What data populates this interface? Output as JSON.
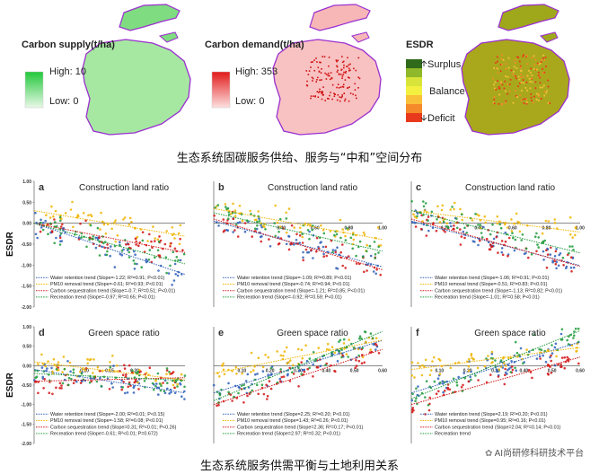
{
  "maps": {
    "supply": {
      "title": "Carbon supply(t/ha)",
      "high_label": "High:",
      "high_value": "10",
      "low_label": "Low:",
      "low_value": "0",
      "high_color": "#22c83a",
      "low_color": "#e8f8e8"
    },
    "demand": {
      "title": "Carbon demand(t/ha)",
      "high_label": "High:",
      "high_value": "353",
      "low_label": "Low:",
      "low_value": "0",
      "high_color": "#e21a1a",
      "low_color": "#fde0e0"
    },
    "esdr": {
      "title": "ESDR",
      "surplus": "Surplus",
      "balance": "Balance",
      "deficit": "Deficit",
      "colors": [
        "#2f6b1b",
        "#8fb82a",
        "#d8e43a",
        "#f4f040",
        "#f9c03a",
        "#f48a2a",
        "#e8391c"
      ]
    }
  },
  "captions": {
    "top": "生态系统固碳服务供给、服务与“中和”空间分布",
    "bottom": "生态系统服务供需平衡与土地利用关系"
  },
  "ylabel_text": "ESDR",
  "watermark": "AI尚研修科研技术平台",
  "series_colors": {
    "water": "#2e5fb8",
    "pm10": "#f0b400",
    "carbon": "#d21414",
    "recreation": "#1f9a3a"
  },
  "chart_data": [
    {
      "type": "scatter",
      "panel": "a",
      "title": "Construction land ratio",
      "ylabel": "ESDR",
      "ylim": [
        -2.0,
        1.0
      ],
      "xlim": [
        0,
        1.0
      ],
      "yticks": [
        "1.00",
        "0.50",
        "0.00",
        "-0.50",
        "-1.00",
        "-1.50",
        "-2.00"
      ],
      "xticks": [],
      "legend": [
        "Water retention trend (Slope=-1.22; R²=0.91; P<0.01)",
        "PM10 removal trend (Slope=-0.61; R²=0.93; P<0.01)",
        "Carbon sequestration trend (Slope=-0.7; R²=0.51; P<0.01)",
        "Recreation trend (Slope=-0.97; R²=0.65; P<0.01)"
      ],
      "series": [
        {
          "name": "Water retention",
          "trend": [
            [
              0,
              0.0
            ],
            [
              1.0,
              -1.22
            ]
          ]
        },
        {
          "name": "PM10 removal",
          "trend": [
            [
              0,
              0.3
            ],
            [
              1.0,
              -0.31
            ]
          ]
        },
        {
          "name": "Carbon sequestration",
          "trend": [
            [
              0,
              0.0
            ],
            [
              1.0,
              -0.7
            ]
          ]
        },
        {
          "name": "Recreation",
          "trend": [
            [
              0,
              0.0
            ],
            [
              1.0,
              -0.97
            ]
          ]
        }
      ]
    },
    {
      "type": "scatter",
      "panel": "b",
      "title": "Construction land ratio",
      "ylim": [
        -2.0,
        1.0
      ],
      "xlim": [
        0,
        1.0
      ],
      "yticks": [],
      "xticks": [
        "0.40",
        "0.60",
        "0.80",
        "1.00"
      ],
      "legend": [
        "Water retention trend (Slope=-1.09; R²=0.89; P<0.01)",
        "PM10 removal trend (Slope=-0.74; R²=0.94; P<0.01)",
        "Carbon sequestration trend (Slope=-1.21; R²=0.85; P<0.01)",
        "Recreation trend (Slope=-0.92; R²=0.59; P<0.01)"
      ],
      "series": [
        {
          "name": "Water retention",
          "trend": [
            [
              0,
              0.05
            ],
            [
              1.0,
              -1.04
            ]
          ]
        },
        {
          "name": "PM10 removal",
          "trend": [
            [
              0,
              0.35
            ],
            [
              1.0,
              -0.39
            ]
          ]
        },
        {
          "name": "Carbon sequestration",
          "trend": [
            [
              0,
              0.1
            ],
            [
              1.0,
              -1.11
            ]
          ]
        },
        {
          "name": "Recreation",
          "trend": [
            [
              0,
              0.25
            ],
            [
              1.0,
              -0.67
            ]
          ]
        }
      ]
    },
    {
      "type": "scatter",
      "panel": "c",
      "title": "Construction land ratio",
      "ylim": [
        -2.0,
        1.0
      ],
      "xlim": [
        0,
        1.0
      ],
      "yticks": [],
      "xticks": [
        "0.20",
        "0.40",
        "0.60",
        "0.80",
        "1.00"
      ],
      "legend": [
        "Water retention trend (Slope=-1.06; R²=0.91; P<0.01)",
        "PM10 removal trend (Slope=-0.51; R²=0.83; P<0.01)",
        "Carbon sequestration trend (Slope=-1.13; R²=0.82; P<0.01)",
        "Recreation trend (Slope=-1.01; R²=0.58; P<0.01)"
      ],
      "series": [
        {
          "name": "Water retention",
          "trend": [
            [
              0,
              0.05
            ],
            [
              1.0,
              -1.01
            ]
          ]
        },
        {
          "name": "PM10 removal",
          "trend": [
            [
              0,
              0.3
            ],
            [
              1.0,
              -0.21
            ]
          ]
        },
        {
          "name": "Carbon sequestration",
          "trend": [
            [
              0,
              0.1
            ],
            [
              1.0,
              -1.03
            ]
          ]
        },
        {
          "name": "Recreation",
          "trend": [
            [
              0,
              0.3
            ],
            [
              1.0,
              -0.71
            ]
          ]
        }
      ]
    },
    {
      "type": "scatter",
      "panel": "d",
      "title": "Green space ratio",
      "ylabel": "ESDR",
      "ylim": [
        -2.0,
        1.0
      ],
      "xlim": [
        0,
        0.3
      ],
      "yticks": [
        "1.00",
        "0.50",
        "0.00",
        "-0.50",
        "-1.00",
        "-1.50",
        "-2.00"
      ],
      "xticks": [
        "0.10",
        "0.15",
        "0.20"
      ],
      "legend": [
        "Water retention trend (Slope=-2.00; R²=0.01; P<0.15)",
        "PM10 removal trend (Slope=-1.58; R²=0.08; P<0.01)",
        "Carbon sequestration trend (Slope=0.31; R²<0.01; P<0.26)",
        "Recreation trend (Slope=-0.61; R²<0.01; P=0.672)"
      ],
      "series": [
        {
          "name": "Water retention",
          "trend": [
            [
              0,
              -0.1
            ],
            [
              0.3,
              -0.7
            ]
          ]
        },
        {
          "name": "PM10 removal",
          "trend": [
            [
              0,
              0.1
            ],
            [
              0.3,
              -0.37
            ]
          ]
        },
        {
          "name": "Carbon sequestration",
          "trend": [
            [
              0,
              -0.4
            ],
            [
              0.3,
              -0.31
            ]
          ]
        },
        {
          "name": "Recreation",
          "trend": [
            [
              0,
              -0.2
            ],
            [
              0.3,
              -0.38
            ]
          ]
        }
      ]
    },
    {
      "type": "scatter",
      "panel": "e",
      "title": "Green space ratio",
      "ylim": [
        -2.0,
        1.0
      ],
      "xlim": [
        0,
        0.6
      ],
      "yticks": [],
      "xticks": [
        "0.10",
        "0.20",
        "0.30",
        "0.40",
        "0.50",
        "0.60"
      ],
      "legend": [
        "Water retention trend (Slope=2.25; R²=0.20; P<0.01)",
        "PM10 removal trend (Slope=1.43; R²=0.26; P<0.01)",
        "Carbon sequestration trend (Slope=2.36; R²=0.17; P<0.01)",
        "Recreation trend (Slope=2.97; R²=0.32; P<0.01)"
      ],
      "series": [
        {
          "name": "Water retention",
          "trend": [
            [
              0,
              -0.7
            ],
            [
              0.6,
              0.65
            ]
          ]
        },
        {
          "name": "PM10 removal",
          "trend": [
            [
              0,
              -0.2
            ],
            [
              0.6,
              0.66
            ]
          ]
        },
        {
          "name": "Carbon sequestration",
          "trend": [
            [
              0,
              -1.0
            ],
            [
              0.6,
              0.42
            ]
          ]
        },
        {
          "name": "Recreation",
          "trend": [
            [
              0,
              -0.9
            ],
            [
              0.6,
              0.88
            ]
          ]
        }
      ]
    },
    {
      "type": "scatter",
      "panel": "f",
      "title": "Green space ratio",
      "ylim": [
        -2.0,
        1.0
      ],
      "xlim": [
        0,
        0.6
      ],
      "yticks": [],
      "xticks": [
        "0.10",
        "0.20",
        "0.30",
        "0.40",
        "0.50",
        "0.60"
      ],
      "legend": [
        "Water retention trend (Slope=2.19; R²=0.20; P<0.01)",
        "PM10 removal trend (Slope=0.95; R²=0.16; P<0.01)",
        "Carbon sequestration trend (Slope=2.04; R²=0.14; P<0.01)",
        "Recreation trend"
      ],
      "series": [
        {
          "name": "Water retention",
          "trend": [
            [
              0,
              -0.7
            ],
            [
              0.6,
              0.61
            ]
          ]
        },
        {
          "name": "PM10 removal",
          "trend": [
            [
              0,
              -0.1
            ],
            [
              0.6,
              0.47
            ]
          ]
        },
        {
          "name": "Carbon sequestration",
          "trend": [
            [
              0,
              -1.0
            ],
            [
              0.6,
              0.22
            ]
          ]
        },
        {
          "name": "Recreation",
          "trend": [
            [
              0,
              -0.85
            ],
            [
              0.6,
              0.9
            ]
          ]
        }
      ]
    }
  ]
}
